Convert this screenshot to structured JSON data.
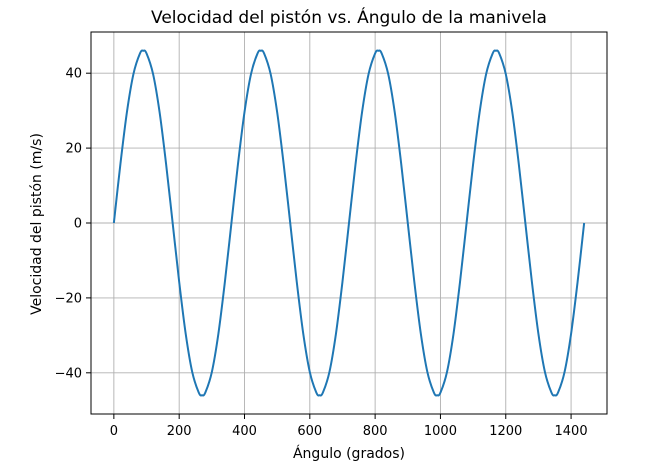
{
  "chart_data": {
    "type": "line",
    "title": "Velocidad del pistón vs. Ángulo de la manivela",
    "xlabel": "Ángulo (grados)",
    "ylabel": "Velocidad del pistón (m/s)",
    "xlim": [
      -70,
      1510
    ],
    "ylim": [
      -51,
      51
    ],
    "grid": true,
    "legend": "none",
    "xticks": [
      0,
      200,
      400,
      600,
      800,
      1000,
      1200,
      1400
    ],
    "xtick_labels": [
      "0",
      "200",
      "400",
      "600",
      "800",
      "1000",
      "1200",
      "1400"
    ],
    "yticks": [
      -40,
      -20,
      0,
      20,
      40
    ],
    "ytick_labels": [
      "−40",
      "−20",
      "0",
      "20",
      "40"
    ],
    "series": [
      {
        "name": "Velocidad del pistón",
        "color": "#1f77b4",
        "x": [
          0,
          20,
          40,
          60,
          80,
          90,
          100,
          120,
          140,
          160,
          180,
          200,
          220,
          240,
          260,
          270,
          280,
          300,
          320,
          340,
          360,
          380,
          400,
          420,
          440,
          450,
          460,
          480,
          500,
          520,
          540,
          560,
          580,
          600,
          620,
          630,
          640,
          660,
          680,
          700,
          720,
          740,
          760,
          780,
          800,
          810,
          820,
          840,
          860,
          880,
          900,
          920,
          940,
          960,
          980,
          990,
          1000,
          1020,
          1040,
          1060,
          1080,
          1100,
          1120,
          1140,
          1160,
          1170,
          1180,
          1200,
          1220,
          1240,
          1260,
          1280,
          1300,
          1320,
          1340,
          1350,
          1360,
          1380,
          1400,
          1420,
          1440
        ],
        "y": [
          0,
          15.7,
          29.6,
          39.8,
          45.3,
          46.0,
          45.3,
          39.8,
          29.6,
          15.7,
          0,
          -15.7,
          -29.6,
          -39.8,
          -45.3,
          -46.0,
          -45.3,
          -39.8,
          -29.6,
          -15.7,
          0,
          15.7,
          29.6,
          39.8,
          45.3,
          46.0,
          45.3,
          39.8,
          29.6,
          15.7,
          0,
          -15.7,
          -29.6,
          -39.8,
          -45.3,
          -46.0,
          -45.3,
          -39.8,
          -29.6,
          -15.7,
          0,
          15.7,
          29.6,
          39.8,
          45.3,
          46.0,
          45.3,
          39.8,
          29.6,
          15.7,
          0,
          -15.7,
          -29.6,
          -39.8,
          -45.3,
          -46.0,
          -45.3,
          -39.8,
          -29.6,
          -15.7,
          0,
          15.7,
          29.6,
          39.8,
          45.3,
          46.0,
          45.3,
          39.8,
          29.6,
          15.7,
          0,
          -15.7,
          -29.6,
          -39.8,
          -45.3,
          -46.0,
          -45.3,
          -39.8,
          -29.6,
          -15.7,
          0
        ]
      }
    ]
  }
}
